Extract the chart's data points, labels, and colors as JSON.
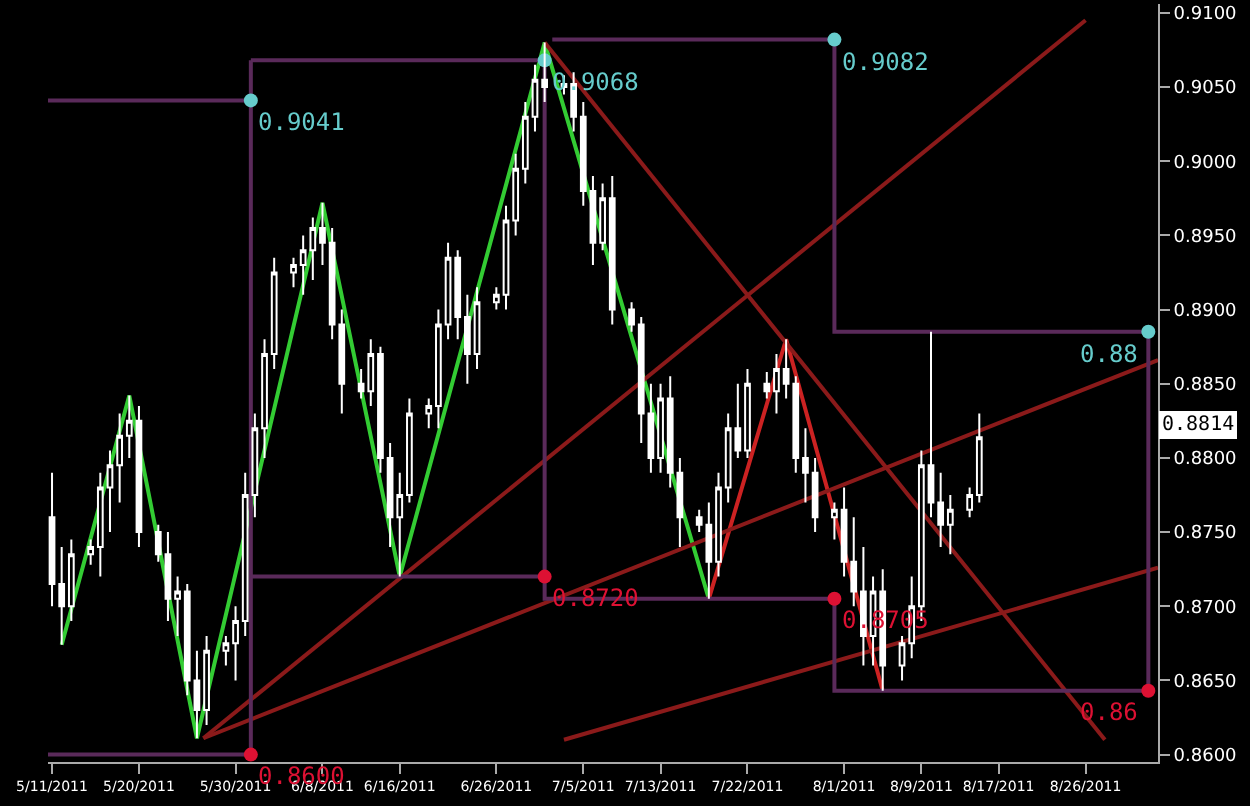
{
  "chart_data": {
    "type": "candlestick",
    "grid": false,
    "x": [
      "2011-05-11",
      "2011-05-12",
      "2011-05-13",
      "2011-05-15",
      "2011-05-16",
      "2011-05-17",
      "2011-05-18",
      "2011-05-19",
      "2011-05-20",
      "2011-05-22",
      "2011-05-23",
      "2011-05-24",
      "2011-05-25",
      "2011-05-26",
      "2011-05-27",
      "2011-05-29",
      "2011-05-30",
      "2011-05-31",
      "2011-06-01",
      "2011-06-02",
      "2011-06-03",
      "2011-06-05",
      "2011-06-06",
      "2011-06-07",
      "2011-06-08",
      "2011-06-09",
      "2011-06-10",
      "2011-06-12",
      "2011-06-13",
      "2011-06-14",
      "2011-06-15",
      "2011-06-16",
      "2011-06-17",
      "2011-06-19",
      "2011-06-20",
      "2011-06-21",
      "2011-06-22",
      "2011-06-23",
      "2011-06-24",
      "2011-06-26",
      "2011-06-27",
      "2011-06-28",
      "2011-06-29",
      "2011-06-30",
      "2011-07-01",
      "2011-07-03",
      "2011-07-04",
      "2011-07-05",
      "2011-07-06",
      "2011-07-07",
      "2011-07-08",
      "2011-07-10",
      "2011-07-11",
      "2011-07-12",
      "2011-07-13",
      "2011-07-14",
      "2011-07-15",
      "2011-07-17",
      "2011-07-18",
      "2011-07-19",
      "2011-07-20",
      "2011-07-21",
      "2011-07-22",
      "2011-07-24",
      "2011-07-25",
      "2011-07-26",
      "2011-07-27",
      "2011-07-28",
      "2011-07-29",
      "2011-07-31",
      "2011-08-01",
      "2011-08-02",
      "2011-08-03",
      "2011-08-04",
      "2011-08-05",
      "2011-08-07",
      "2011-08-08",
      "2011-08-09",
      "2011-08-10",
      "2011-08-11",
      "2011-08-12",
      "2011-08-14",
      "2011-08-15"
    ],
    "xlim": [
      "2011-05-10T14:00",
      "2011-09-02T12:00"
    ],
    "xticks": [
      {
        "value": "2011-05-11",
        "label": "5/11/2011"
      },
      {
        "value": "2011-05-20",
        "label": "5/20/2011"
      },
      {
        "value": "2011-05-30",
        "label": "5/30/2011"
      },
      {
        "value": "2011-06-08",
        "label": "6/8/2011"
      },
      {
        "value": "2011-06-16",
        "label": "6/16/2011"
      },
      {
        "value": "2011-06-26",
        "label": "6/26/2011"
      },
      {
        "value": "2011-07-05",
        "label": "7/5/2011"
      },
      {
        "value": "2011-07-13",
        "label": "7/13/2011"
      },
      {
        "value": "2011-07-22",
        "label": "7/22/2011"
      },
      {
        "value": "2011-08-01",
        "label": "8/1/2011"
      },
      {
        "value": "2011-08-09",
        "label": "8/9/2011"
      },
      {
        "value": "2011-08-17",
        "label": "8/17/2011"
      },
      {
        "value": "2011-08-26",
        "label": "8/26/2011"
      }
    ],
    "ylim": [
      0.8595,
      0.9106
    ],
    "yticks": [
      {
        "value": 0.86,
        "label": "0.8600"
      },
      {
        "value": 0.865,
        "label": "0.8650"
      },
      {
        "value": 0.87,
        "label": "0.8700"
      },
      {
        "value": 0.875,
        "label": "0.8750"
      },
      {
        "value": 0.88,
        "label": "0.8800"
      },
      {
        "value": 0.885,
        "label": "0.8850"
      },
      {
        "value": 0.89,
        "label": "0.8900"
      },
      {
        "value": 0.895,
        "label": "0.8950"
      },
      {
        "value": 0.9,
        "label": "0.9000"
      },
      {
        "value": 0.905,
        "label": "0.9050"
      },
      {
        "value": 0.91,
        "label": "0.9100"
      }
    ],
    "series": [
      {
        "color": "#ffffff",
        "ohlc": [
          [
            0.876,
            0.879,
            0.87,
            0.8715
          ],
          [
            0.8715,
            0.874,
            0.8674,
            0.87
          ],
          [
            0.87,
            0.8745,
            0.869,
            0.8735
          ],
          [
            0.8735,
            0.8745,
            0.8728,
            0.874
          ],
          [
            0.874,
            0.879,
            0.872,
            0.878
          ],
          [
            0.878,
            0.8805,
            0.875,
            0.8795
          ],
          [
            0.8795,
            0.883,
            0.877,
            0.8815
          ],
          [
            0.8815,
            0.8842,
            0.88,
            0.8825
          ],
          [
            0.8825,
            0.8835,
            0.874,
            0.875
          ],
          [
            0.875,
            0.8755,
            0.873,
            0.8735
          ],
          [
            0.8735,
            0.875,
            0.869,
            0.8705
          ],
          [
            0.8705,
            0.872,
            0.868,
            0.871
          ],
          [
            0.871,
            0.8715,
            0.864,
            0.865
          ],
          [
            0.865,
            0.867,
            0.8611,
            0.863
          ],
          [
            0.863,
            0.868,
            0.862,
            0.867
          ],
          [
            0.867,
            0.868,
            0.866,
            0.8675
          ],
          [
            0.8675,
            0.87,
            0.865,
            0.869
          ],
          [
            0.869,
            0.879,
            0.868,
            0.8775
          ],
          [
            0.8775,
            0.883,
            0.876,
            0.882
          ],
          [
            0.882,
            0.888,
            0.88,
            0.887
          ],
          [
            0.887,
            0.8935,
            0.886,
            0.8925
          ],
          [
            0.8925,
            0.8935,
            0.8915,
            0.893
          ],
          [
            0.893,
            0.895,
            0.891,
            0.894
          ],
          [
            0.894,
            0.8962,
            0.892,
            0.8955
          ],
          [
            0.8955,
            0.8972,
            0.893,
            0.8945
          ],
          [
            0.8945,
            0.8955,
            0.888,
            0.889
          ],
          [
            0.889,
            0.89,
            0.883,
            0.885
          ],
          [
            0.885,
            0.886,
            0.884,
            0.8845
          ],
          [
            0.8845,
            0.888,
            0.8835,
            0.887
          ],
          [
            0.887,
            0.8875,
            0.879,
            0.88
          ],
          [
            0.88,
            0.881,
            0.874,
            0.876
          ],
          [
            0.876,
            0.879,
            0.872,
            0.8775
          ],
          [
            0.8775,
            0.884,
            0.877,
            0.883
          ],
          [
            0.883,
            0.884,
            0.882,
            0.8835
          ],
          [
            0.8835,
            0.89,
            0.882,
            0.889
          ],
          [
            0.889,
            0.8945,
            0.888,
            0.8935
          ],
          [
            0.8935,
            0.894,
            0.888,
            0.8895
          ],
          [
            0.8895,
            0.891,
            0.885,
            0.887
          ],
          [
            0.887,
            0.8915,
            0.886,
            0.8905
          ],
          [
            0.8905,
            0.8915,
            0.89,
            0.891
          ],
          [
            0.891,
            0.897,
            0.89,
            0.896
          ],
          [
            0.896,
            0.9005,
            0.895,
            0.8995
          ],
          [
            0.8995,
            0.904,
            0.8985,
            0.903
          ],
          [
            0.903,
            0.9065,
            0.902,
            0.9055
          ],
          [
            0.9055,
            0.908,
            0.904,
            0.905
          ],
          [
            0.905,
            0.9058,
            0.9045,
            0.9052
          ],
          [
            0.9052,
            0.906,
            0.902,
            0.903
          ],
          [
            0.903,
            0.904,
            0.897,
            0.898
          ],
          [
            0.898,
            0.899,
            0.893,
            0.8945
          ],
          [
            0.8945,
            0.8985,
            0.894,
            0.8975
          ],
          [
            0.8975,
            0.899,
            0.889,
            0.89
          ],
          [
            0.89,
            0.8905,
            0.8885,
            0.889
          ],
          [
            0.889,
            0.8895,
            0.881,
            0.883
          ],
          [
            0.883,
            0.885,
            0.879,
            0.88
          ],
          [
            0.88,
            0.885,
            0.879,
            0.884
          ],
          [
            0.884,
            0.8855,
            0.878,
            0.879
          ],
          [
            0.879,
            0.88,
            0.874,
            0.876
          ],
          [
            0.876,
            0.8765,
            0.875,
            0.8755
          ],
          [
            0.8755,
            0.877,
            0.8705,
            0.873
          ],
          [
            0.873,
            0.879,
            0.872,
            0.878
          ],
          [
            0.878,
            0.883,
            0.877,
            0.882
          ],
          [
            0.882,
            0.885,
            0.88,
            0.8805
          ],
          [
            0.8805,
            0.886,
            0.88,
            0.885
          ],
          [
            0.885,
            0.8858,
            0.884,
            0.8845
          ],
          [
            0.8845,
            0.887,
            0.883,
            0.886
          ],
          [
            0.886,
            0.888,
            0.884,
            0.885
          ],
          [
            0.885,
            0.8855,
            0.879,
            0.88
          ],
          [
            0.88,
            0.882,
            0.877,
            0.879
          ],
          [
            0.879,
            0.88,
            0.875,
            0.876
          ],
          [
            0.876,
            0.877,
            0.8745,
            0.8765
          ],
          [
            0.8765,
            0.878,
            0.872,
            0.873
          ],
          [
            0.873,
            0.876,
            0.87,
            0.871
          ],
          [
            0.871,
            0.874,
            0.866,
            0.868
          ],
          [
            0.868,
            0.872,
            0.866,
            0.871
          ],
          [
            0.871,
            0.8725,
            0.8643,
            0.866
          ],
          [
            0.866,
            0.868,
            0.865,
            0.8675
          ],
          [
            0.8675,
            0.872,
            0.8665,
            0.87
          ],
          [
            0.87,
            0.8805,
            0.869,
            0.8795
          ],
          [
            0.8795,
            0.8885,
            0.876,
            0.877
          ],
          [
            0.877,
            0.879,
            0.874,
            0.8755
          ],
          [
            0.8755,
            0.8775,
            0.8735,
            0.8765
          ],
          [
            0.8765,
            0.878,
            0.876,
            0.8775
          ],
          [
            0.8775,
            0.883,
            0.877,
            0.8814
          ]
        ]
      },
      {
        "type": "line",
        "color": "#33cc33",
        "x": [
          "2011-05-12",
          "2011-05-19",
          "2011-05-26",
          "2011-06-08",
          "2011-06-16",
          "2011-07-01",
          "2011-07-18"
        ],
        "values": [
          0.8674,
          0.8842,
          0.8611,
          0.8972,
          0.872,
          0.908,
          0.8705
        ]
      },
      {
        "type": "line",
        "color": "#cc2222",
        "x": [
          "2011-07-18",
          "2011-07-26",
          "2011-08-05"
        ],
        "values": [
          0.8705,
          0.888,
          0.8643
        ]
      },
      {
        "type": "line",
        "color": "#8b1a1a",
        "x": [
          "2011-05-26T16:00",
          "2011-08-26"
        ],
        "values": [
          0.8611,
          0.9095
        ]
      },
      {
        "type": "line",
        "color": "#8b1a1a",
        "x": [
          "2011-05-26T16:00",
          "2011-09-02T12:00"
        ],
        "values": [
          0.8611,
          0.8866
        ]
      },
      {
        "type": "line",
        "color": "#8b1a1a",
        "x": [
          "2011-07-03",
          "2011-09-02T12:00"
        ],
        "values": [
          0.861,
          0.8726
        ]
      },
      {
        "type": "line",
        "color": "#8b1a1a",
        "x": [
          "2011-07-01",
          "2011-08-28"
        ],
        "values": [
          0.908,
          0.861
        ]
      },
      {
        "type": "line",
        "color": "#5a2a5a",
        "x": [
          "2011-05-10T14:00",
          "2011-05-31T14:00",
          null,
          "2011-05-31T14:00",
          "2011-05-31T14:00",
          "2011-05-10T14:00",
          null,
          "2011-05-31T14:00",
          "2011-07-01",
          "2011-07-01",
          "2011-05-31T14:00",
          null,
          "2011-07-01",
          "2011-07-01",
          "2011-07-31",
          "2011-07-31",
          "2011-09-01T12:00",
          "2011-09-01T12:00",
          "2011-07-31",
          "2011-07-31",
          "2011-07-01T19:00"
        ],
        "values": [
          0.9041,
          0.9041,
          null,
          0.9068,
          0.86,
          0.86,
          null,
          0.9068,
          0.9068,
          0.872,
          0.872,
          null,
          0.872,
          0.8705,
          0.8705,
          0.8643,
          0.8643,
          0.8885,
          0.8885,
          0.9082,
          0.9082
        ]
      },
      {
        "type": "scatter",
        "marker": "circle",
        "color": "#66cccc",
        "x": [
          "2011-05-31T14:00",
          "2011-07-01",
          "2011-07-31",
          "2011-09-01T12:00"
        ],
        "values": [
          0.9041,
          0.9068,
          0.9082,
          0.8885
        ]
      },
      {
        "type": "scatter",
        "marker": "circle",
        "color": "#dd1133",
        "x": [
          "2011-05-31T14:00",
          "2011-07-01",
          "2011-07-31",
          "2011-09-01T12:00"
        ],
        "values": [
          0.86,
          0.872,
          0.8705,
          0.8643
        ]
      }
    ],
    "annotations": [
      {
        "text": "0.9041",
        "x": "2011-05-31T14:00",
        "y": 0.9041
      },
      {
        "text": "0.9068",
        "x": "2011-07-01",
        "y": 0.9068
      },
      {
        "text": "0.9082",
        "x": "2011-07-31",
        "y": 0.9082
      },
      {
        "text": "0.88",
        "x": "2011-09-01T12:00",
        "y": 0.8885
      },
      {
        "text": "0.8600",
        "x": "2011-05-31T14:00",
        "y": 0.86
      },
      {
        "text": "0.8720",
        "x": "2011-07-01",
        "y": 0.872
      },
      {
        "text": "0.8705",
        "x": "2011-07-31",
        "y": 0.8705
      },
      {
        "text": "0.86",
        "x": "2011-09-01T12:00",
        "y": 0.8643
      },
      {
        "text": "0.8814",
        "x": "2011-09-02T12:00",
        "y": 0.8814
      }
    ]
  }
}
